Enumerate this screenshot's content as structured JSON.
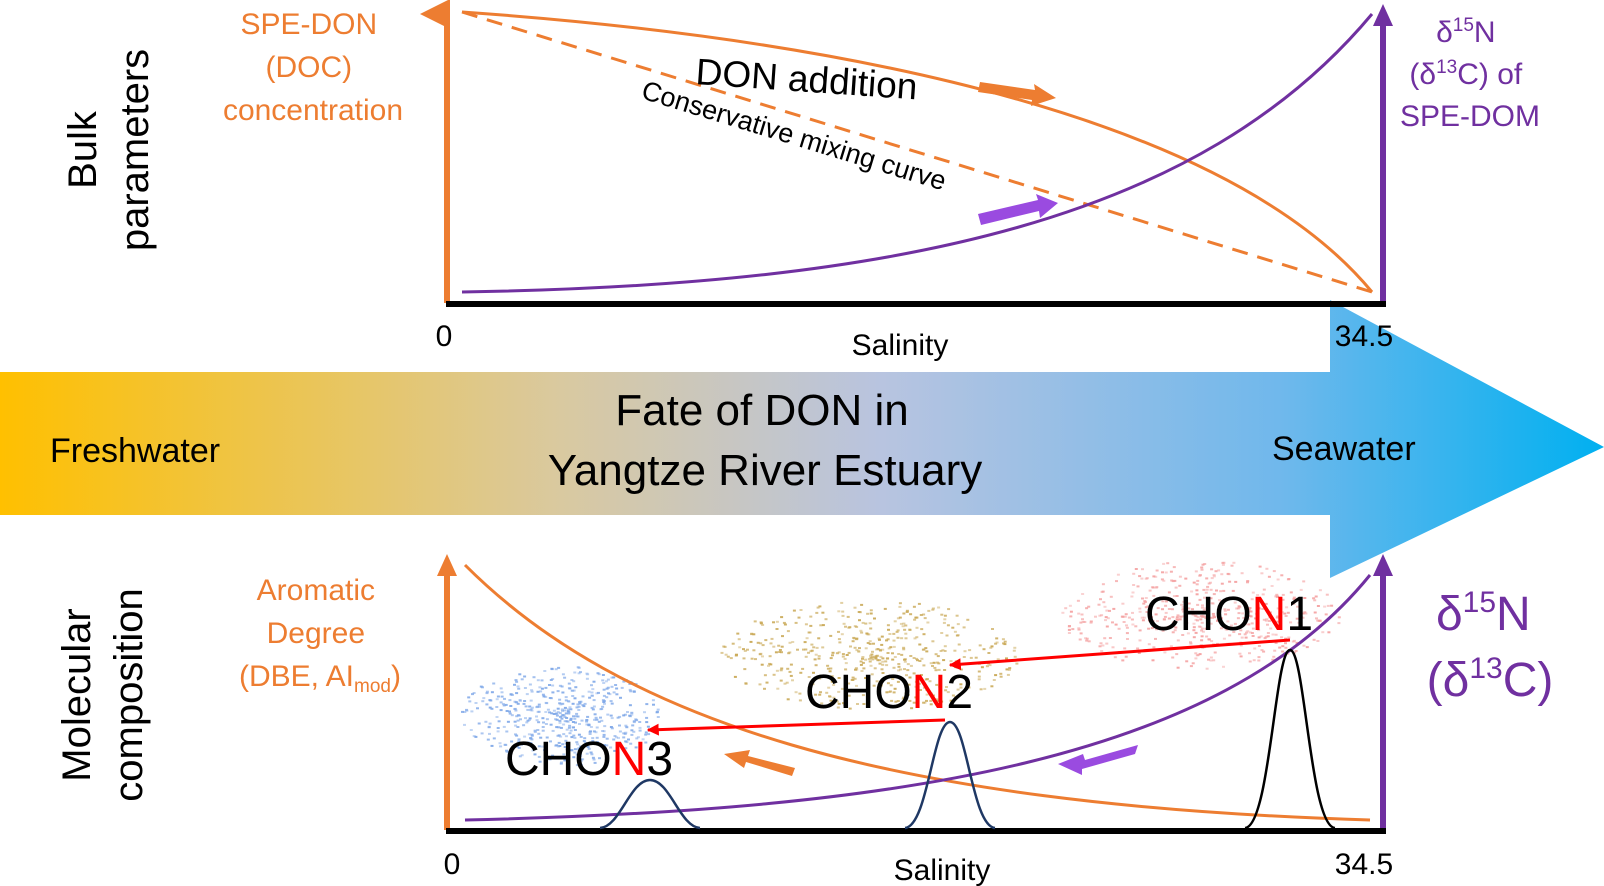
{
  "colors": {
    "orange": "#ED7D31",
    "purple": "#7030A0",
    "red": "#FF0000",
    "black": "#000000",
    "navy": "#1F3864",
    "fresh": "#FFC000",
    "sea": "#00B0F0",
    "cloud_red": "#F4A0A0",
    "cloud_gold": "#C9A855",
    "cloud_blue": "#7FA8E8"
  },
  "top": {
    "row_label_1": "Bulk",
    "row_label_2": "parameters",
    "left_axis": [
      "SPE-DON",
      "(DOC)",
      "concentration"
    ],
    "right_axis": {
      "line1_pre": "δ",
      "line1_sup": "15",
      "line1_post": "N",
      "line2_pre": "(δ",
      "line2_sup": "13",
      "line2_post": "C) of",
      "line3": "SPE-DOM"
    },
    "curve_label": "DON addition",
    "mixing_label": "Conservative mixing curve",
    "x_min": "0",
    "x_max": "34.5",
    "x_label": "Salinity"
  },
  "banner": {
    "left": "Freshwater",
    "right": "Seawater",
    "title_1": "Fate of DON in",
    "title_2": "Yangtze River Estuary"
  },
  "bottom": {
    "row_label_1": "Molecular",
    "row_label_2": "composition",
    "left_axis_1": "Aromatic",
    "left_axis_2": "Degree",
    "left_axis_3_pre": "(DBE, AI",
    "left_axis_3_sub": "mod",
    "left_axis_3_post": ")",
    "right_axis": {
      "line1_pre": "δ",
      "line1_sup": "15",
      "line1_post": "N",
      "line2_pre": "(δ",
      "line2_sup": "13",
      "line2_post": "C)"
    },
    "chon1": {
      "pre": "CHO",
      "n": "N",
      "post": "1"
    },
    "chon2": {
      "pre": "CHO",
      "n": "N",
      "post": "2"
    },
    "chon3": {
      "pre": "CHO",
      "n": "N",
      "post": "3"
    },
    "x_min": "0",
    "x_max": "34.5",
    "x_label": "Salinity"
  }
}
